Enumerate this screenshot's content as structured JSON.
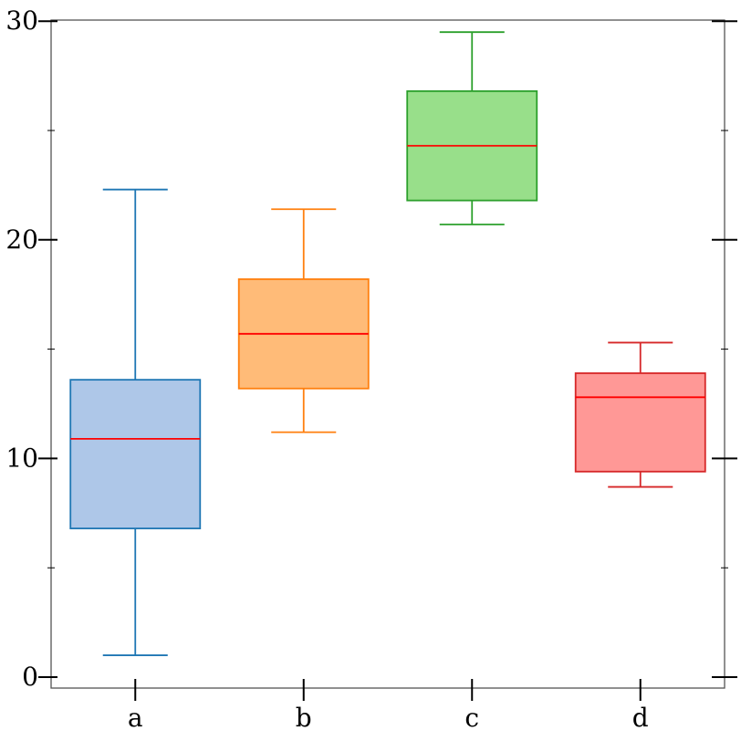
{
  "chart_data": {
    "type": "box",
    "title": "",
    "xlabel": "",
    "ylabel": "",
    "ylim": [
      -0.5,
      30.05
    ],
    "yticks_major": [
      0,
      10,
      20,
      30
    ],
    "yticks_minor": [
      5,
      15,
      25
    ],
    "ytick_labels": [
      "0",
      "10",
      "20",
      "30"
    ],
    "grid": false,
    "median_color": "#ff0000",
    "categories": [
      "a",
      "b",
      "c",
      "d"
    ],
    "boxes": [
      {
        "label": "a",
        "whisker_low": 1.0,
        "q1": 6.8,
        "median": 10.9,
        "q3": 13.6,
        "whisker_high": 22.3,
        "edge_color": "#1f77b4",
        "fill_color": "#aec7e8"
      },
      {
        "label": "b",
        "whisker_low": 11.2,
        "q1": 13.2,
        "median": 15.7,
        "q3": 18.2,
        "whisker_high": 21.4,
        "edge_color": "#ff7f0e",
        "fill_color": "#ffbb78"
      },
      {
        "label": "c",
        "whisker_low": 20.7,
        "q1": 21.8,
        "median": 24.3,
        "q3": 26.8,
        "whisker_high": 29.5,
        "edge_color": "#2ca02c",
        "fill_color": "#98df8a"
      },
      {
        "label": "d",
        "whisker_low": 8.7,
        "q1": 9.4,
        "median": 12.8,
        "q3": 13.9,
        "whisker_high": 15.3,
        "edge_color": "#d62728",
        "fill_color": "#ff9896"
      }
    ]
  }
}
